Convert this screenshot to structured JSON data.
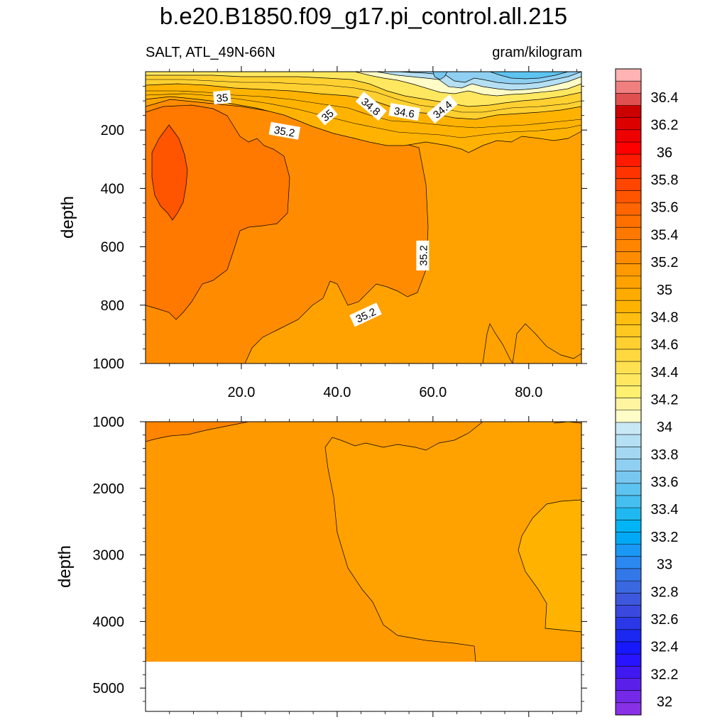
{
  "title": "b.e20.B1850.f09_g17.pi_control.all.215",
  "subtitle_left": "SALT, ATL_49N-66N",
  "subtitle_right": "gram/kilogram",
  "colors": {
    "deep_orange": "#ff5500",
    "orange_352": "#ff7800",
    "orange_350": "#ff8c00",
    "orange_348": "#ffa200",
    "orange_346": "#ffb300",
    "yellow_344": "#ffd030",
    "blue_340": "#9fd4ef",
    "blue_336": "#5dc3f0"
  },
  "chart_data": [
    {
      "type": "heatmap",
      "panel": "upper",
      "variable": "SALT",
      "region": "ATL_49N-66N",
      "units": "gram/kilogram",
      "x_ticks": [
        "20.0",
        "40.0",
        "60.0",
        "80.0"
      ],
      "x_tick_values": [
        20,
        40,
        60,
        80
      ],
      "xlim": [
        0,
        91
      ],
      "ylabel": "depth",
      "y_ticks": [
        "200",
        "400",
        "600",
        "800",
        "1000"
      ],
      "y_tick_values": [
        200,
        400,
        600,
        800,
        1000
      ],
      "ylim": [
        0,
        1000
      ],
      "y_reversed": true,
      "contour_labels": [
        {
          "text": "35",
          "x": 16,
          "y": 90
        },
        {
          "text": "35",
          "x": 38,
          "y": 150
        },
        {
          "text": "34.8",
          "x": 47,
          "y": 120
        },
        {
          "text": "34.6",
          "x": 54,
          "y": 140
        },
        {
          "text": "34.4",
          "x": 62,
          "y": 130
        },
        {
          "text": "35.2",
          "x": 29,
          "y": 205
        },
        {
          "text": "35.2",
          "x": 58,
          "y": 630
        },
        {
          "text": "35.2",
          "x": 46,
          "y": 835
        }
      ]
    },
    {
      "type": "heatmap",
      "panel": "lower",
      "x_ticks": [],
      "xlim": [
        0,
        91
      ],
      "ylabel": "depth",
      "y_ticks": [
        "1000",
        "2000",
        "3000",
        "4000",
        "5000"
      ],
      "y_tick_values": [
        1000,
        2000,
        3000,
        4000,
        5000
      ],
      "ylim": [
        1000,
        5350
      ],
      "y_reversed": true,
      "missing_below": 4600
    }
  ],
  "colorbar": {
    "labels": [
      "36.4",
      "36.2",
      "36",
      "35.8",
      "35.6",
      "35.4",
      "35.2",
      "35",
      "34.8",
      "34.6",
      "34.4",
      "34.2",
      "34",
      "33.8",
      "33.6",
      "33.4",
      "33.2",
      "33",
      "32.8",
      "32.6",
      "32.4",
      "32.2",
      "32"
    ],
    "colors": [
      "#ffb3b3",
      "#f08080",
      "#e05050",
      "#cc0000",
      "#dd0000",
      "#ee0000",
      "#ff0000",
      "#ff1a00",
      "#ff3300",
      "#ff4500",
      "#ff5500",
      "#ff6600",
      "#ff7000",
      "#ff7800",
      "#ff8500",
      "#ff8c00",
      "#ff9900",
      "#ffa200",
      "#ffab00",
      "#ffb300",
      "#ffbe10",
      "#ffc820",
      "#ffd030",
      "#ffd840",
      "#ffe050",
      "#ffe860",
      "#fff070",
      "#fff5a0",
      "#fffcc8",
      "#c8e8f5",
      "#b5dff3",
      "#a4d8f2",
      "#8fcff1",
      "#78c7f0",
      "#5dc3f0",
      "#45bef0",
      "#20b8f0",
      "#00b4f5",
      "#00a8f5",
      "#1a98f5",
      "#2b88f0",
      "#3378e8",
      "#3a68e0",
      "#3d58dc",
      "#3a48e0",
      "#2a38e8",
      "#1a28f0",
      "#1818ff",
      "#2814ff",
      "#4018f0",
      "#5a20ea",
      "#7428e8",
      "#8830e6"
    ]
  }
}
